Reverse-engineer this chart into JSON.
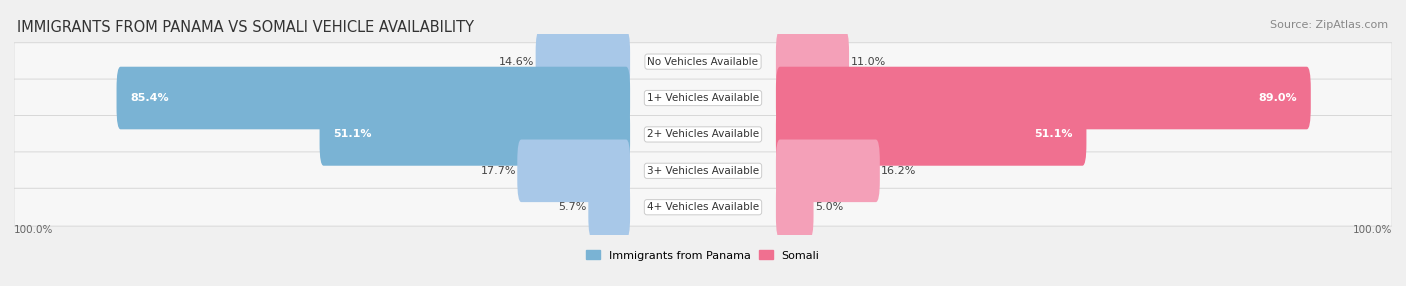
{
  "title": "IMMIGRANTS FROM PANAMA VS SOMALI VEHICLE AVAILABILITY",
  "source": "Source: ZipAtlas.com",
  "categories": [
    "No Vehicles Available",
    "1+ Vehicles Available",
    "2+ Vehicles Available",
    "3+ Vehicles Available",
    "4+ Vehicles Available"
  ],
  "panama_values": [
    14.6,
    85.4,
    51.1,
    17.7,
    5.7
  ],
  "somali_values": [
    11.0,
    89.0,
    51.1,
    16.2,
    5.0
  ],
  "panama_color": "#7ab3d4",
  "somali_color": "#f07090",
  "panama_color_light": "#a8c8e8",
  "somali_color_light": "#f4a0b8",
  "bg_color": "#f0f0f0",
  "row_bg_color": "#f7f7f7",
  "row_border_color": "#d8d8d8",
  "legend_panama": "Immigrants from Panama",
  "legend_somali": "Somali",
  "max_value": 100.0,
  "title_fontsize": 10.5,
  "source_fontsize": 8,
  "label_fontsize": 8,
  "value_fontsize": 8
}
